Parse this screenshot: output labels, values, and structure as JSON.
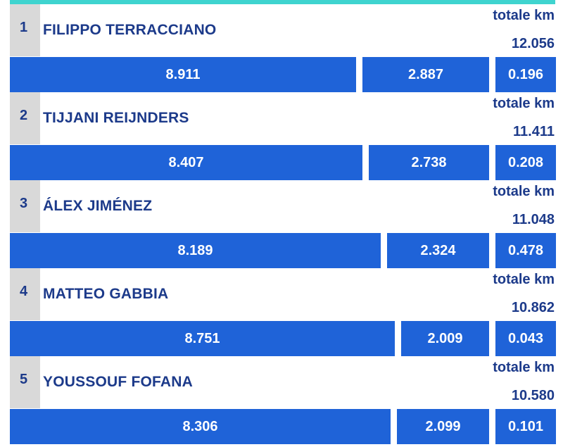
{
  "colors": {
    "accent_bar": "#3fd4cf",
    "segment_blue": "#1f63d8",
    "text_navy": "#1c3a8a",
    "rank_box": "#d9d9d9"
  },
  "chart_data": {
    "type": "bar",
    "stacked": true,
    "total_label": "totale km",
    "categories": [
      "FILIPPO TERRACCIANO",
      "TIJJANI REIJNDERS",
      "ÁLEX JIMÉNEZ",
      "MATTEO GABBIA",
      "YOUSSOUF FOFANA"
    ],
    "ranks": [
      "1",
      "2",
      "3",
      "4",
      "5"
    ],
    "totals": [
      "12.056",
      "11.411",
      "11.048",
      "10.862",
      "10.580"
    ],
    "series": [
      {
        "values": [
          "8.911",
          "8.407",
          "8.189",
          "8.751",
          "8.306"
        ]
      },
      {
        "values": [
          "2.887",
          "2.738",
          "2.324",
          "2.009",
          "2.099"
        ]
      },
      {
        "values": [
          "0.196",
          "0.208",
          "0.478",
          "0.043",
          "0.101"
        ]
      }
    ]
  }
}
